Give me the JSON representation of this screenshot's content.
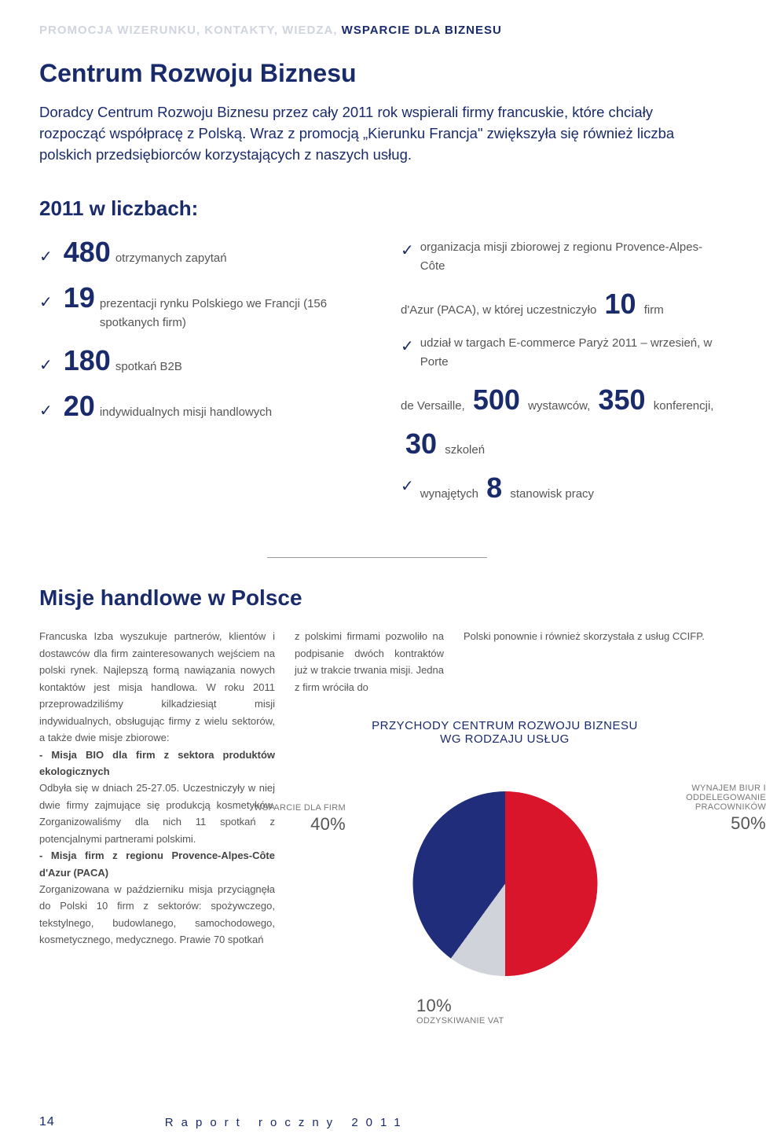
{
  "header": {
    "light": "PROMOCJA WIZERUNKU, KONTAKTY, WIEDZA, ",
    "dark": "WSPARCIE DLA BIZNESU"
  },
  "title": "Centrum Rozwoju Biznesu",
  "intro": "Doradcy Centrum Rozwoju Biznesu przez cały 2011 rok wspierali firmy francuskie, które chciały rozpocząć współpracę z Polską. Wraz z promocją „Kierunku Francja\" zwiększyła się również liczba polskich przedsiębiorców korzystających z naszych usług.",
  "numbers_heading": "2011 w liczbach:",
  "nums": {
    "n480": "480",
    "t480": "otrzymanych zapytań",
    "n19": "19",
    "t19": "prezentacji rynku Polskiego we Francji (156 spotkanych firm)",
    "n180": "180",
    "t180": "spotkań B2B",
    "n20": "20",
    "t20": "indywidualnych misji handlowych",
    "r1": "organizacja misji zbiorowej z regionu Provence-Alpes-Côte",
    "r2a": "d'Azur (PACA), w której uczestniczyło",
    "n10": "10",
    "r2b": "firm",
    "r3": "udział w targach E-commerce Paryż 2011 – wrzesień, w Porte",
    "r4a": "de Versaille,",
    "n500": "500",
    "r4b": "wystawców,",
    "n350": "350",
    "r4c": "konferencji,",
    "n30": "30",
    "r5": "szkoleń",
    "r6a": "wynajętych",
    "n8": "8",
    "r6b": "stanowisk pracy"
  },
  "section2_title": "Misje handlowe w Polsce",
  "body": {
    "col1": "Francuska Izba wyszukuje partnerów, klientów i dostawców dla firm zainteresowanych wejściem na polski rynek. Najlepszą formą nawiązania nowych kontaktów jest misja handlowa. W roku 2011 przeprowadziliśmy kilkadziesiąt misji indywidualnych, obsługując firmy z wielu sektorów, a także dwie misje zbiorowe:",
    "col1b_title": "- Misja BIO dla firm z sektora produktów ekologicznych",
    "col1b": "Odbyła się w dniach 25-27.05. Uczestniczyły w niej dwie firmy zajmujące się produkcją kosmetyków. Zorganizowaliśmy dla nich 11 spotkań z potencjalnymi partnerami polskimi.",
    "col1c_title": "- Misja firm z regionu Provence-Alpes-Côte d'Azur (PACA)",
    "col1c": "Zorganizowana w październiku misja przyciągnęła do Polski 10 firm z sektorów: spożywczego, tekstylnego, budowlanego, samochodowego, kosmetycznego, medycznego. Prawie 70 spotkań",
    "col2": "z polskimi firmami pozwoliło na podpisanie dwóch kontraktów już w trakcie trwania misji. Jedna z firm wróciła do",
    "col3": "Polski ponownie i również skorzystała z usług CCIFP."
  },
  "chart": {
    "title": "PRZYCHODY CENTRUM ROZWOJU BIZNESU\nWG RODZAJU USŁUG",
    "slices": [
      {
        "label": "WSPARCIE DLA FIRM",
        "pct": "40%",
        "value": 40,
        "color": "#1f2d7a"
      },
      {
        "label": "WYNAJEM BIUR I ODDELEGOWANIE PRACOWNIKÓW",
        "pct": "50%",
        "value": 50,
        "color": "#d8152a"
      },
      {
        "label": "ODZYSKIWANIE VAT",
        "pct": "10%",
        "value": 10,
        "color": "#d0d3da"
      }
    ],
    "background": "#ffffff"
  },
  "footer": {
    "page": "14",
    "text": "Raport roczny 2011"
  }
}
